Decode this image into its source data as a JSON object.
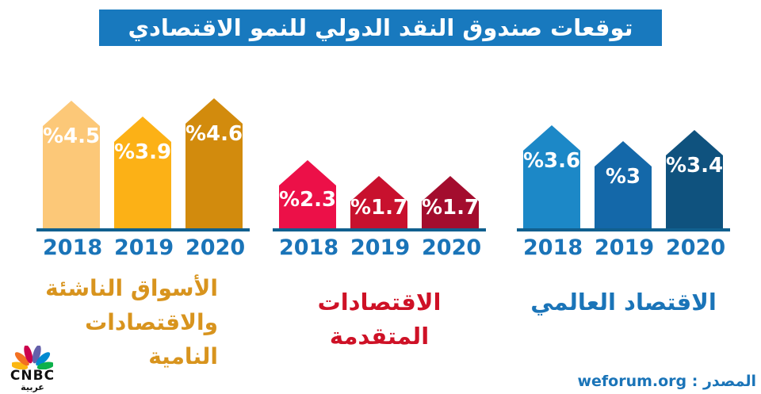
{
  "title": {
    "text": "توقعات صندوق النقد الدولي للنمو الاقتصادي",
    "bg": "#1879be",
    "color": "#ffffff"
  },
  "chart_data": {
    "type": "bar",
    "categories": [
      "2018",
      "2019",
      "2020"
    ],
    "unit": "%",
    "axis_color": "#11608f",
    "year_label_color": "#1a74b8",
    "groups": [
      {
        "name": "الأسواق الناشئة والاقتصادات النامية",
        "label_lines": [
          "الأسواق الناشئة",
          "والاقتصادات النامية"
        ],
        "label_color": "#d8941e",
        "values": [
          4.5,
          3.9,
          4.6
        ],
        "value_labels": [
          "%4.5",
          "%3.9",
          "%4.6"
        ],
        "colors": [
          "#fcc878",
          "#fcb116",
          "#d28b0d"
        ]
      },
      {
        "name": "الاقتصادات المتقدمة",
        "label_lines": [
          "الاقتصادات المتقدمة"
        ],
        "label_color": "#ce1126",
        "values": [
          2.3,
          1.7,
          1.7
        ],
        "value_labels": [
          "%2.3",
          "%1.7",
          "%1.7"
        ],
        "colors": [
          "#ec1048",
          "#c8112e",
          "#a30d2e"
        ]
      },
      {
        "name": "الاقتصاد العالمي",
        "label_lines": [
          "الاقتصاد العالمي"
        ],
        "label_color": "#1a74b8",
        "values": [
          3.6,
          3.0,
          3.4
        ],
        "value_labels": [
          "%3.6",
          "%3",
          "%3.4"
        ],
        "colors": [
          "#1c88c7",
          "#1468a9",
          "#0f527e"
        ]
      }
    ]
  },
  "footer": {
    "logo": {
      "brand": "CNBC",
      "sub": "عربية",
      "peacock_colors": [
        "#fcb711",
        "#f37021",
        "#cc004c",
        "#6460aa",
        "#0089d0",
        "#0db14b"
      ]
    },
    "source_label": "المصدر : weforum.org",
    "source_color": "#1a74b8"
  }
}
